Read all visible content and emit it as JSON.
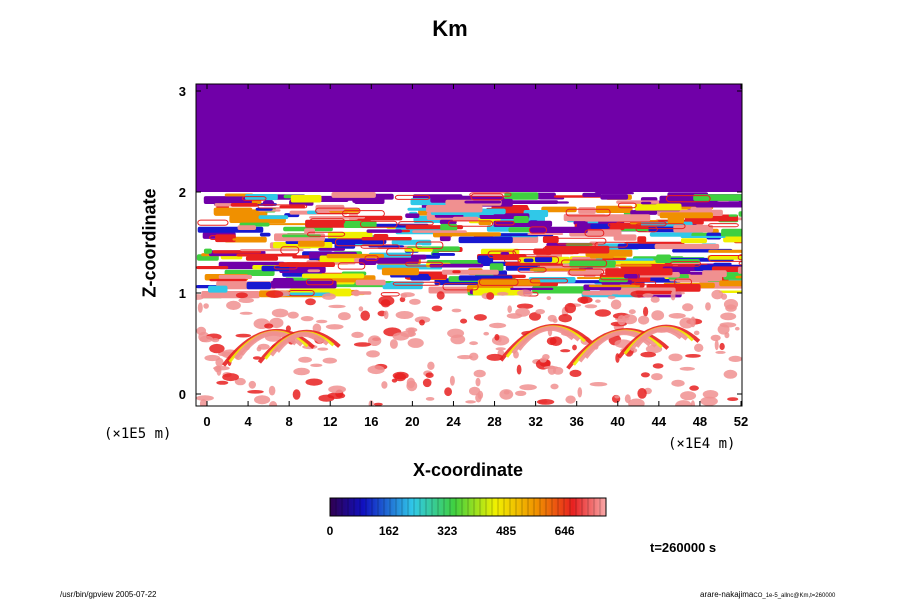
{
  "chart_data": {
    "type": "heatmap",
    "title": "Km",
    "xlabel": "X-coordinate",
    "ylabel": "Z-coordinate",
    "x_unit": "(×1E4 m)",
    "z_unit": "(×1E5 m)",
    "xlim": [
      0,
      52
    ],
    "ylim": [
      0,
      3
    ],
    "x_ticks": [
      "0",
      "4",
      "8",
      "12",
      "16",
      "20",
      "24",
      "28",
      "32",
      "36",
      "40",
      "44",
      "48",
      "52"
    ],
    "y_ticks": [
      "0",
      "1",
      "2",
      "3"
    ],
    "colorbar": {
      "tick_labels": [
        "0",
        "162",
        "323",
        "485",
        "646"
      ],
      "tick_values": [
        0,
        162,
        323,
        485,
        646
      ],
      "max": 760
    },
    "field_regions": [
      {
        "z_range": [
          2.0,
          3.0
        ],
        "description": "uniform minimum (purple)",
        "value": 0
      },
      {
        "z_range": [
          1.0,
          2.0
        ],
        "description": "banded layers with full range of values"
      },
      {
        "z_range": [
          0.0,
          1.0
        ],
        "description": "mostly white with red-to-yellow wave patterns near x≈4-10 and x≈30-40"
      }
    ],
    "time_label": "t=260000 s"
  },
  "footer": {
    "left": "/usr/bin/gpview 2005-07-22",
    "right": "arare-nakajima",
    "right_sub": "CO_1e-5_allnc@Km,t=260000"
  },
  "colors": {
    "purple": "#7000a8",
    "blue": "#1818d0",
    "cyan": "#30c8e8",
    "green": "#40d040",
    "yellow": "#f0f000",
    "orange": "#f09000",
    "red": "#e82020",
    "pink": "#f09090",
    "white": "#ffffff"
  }
}
